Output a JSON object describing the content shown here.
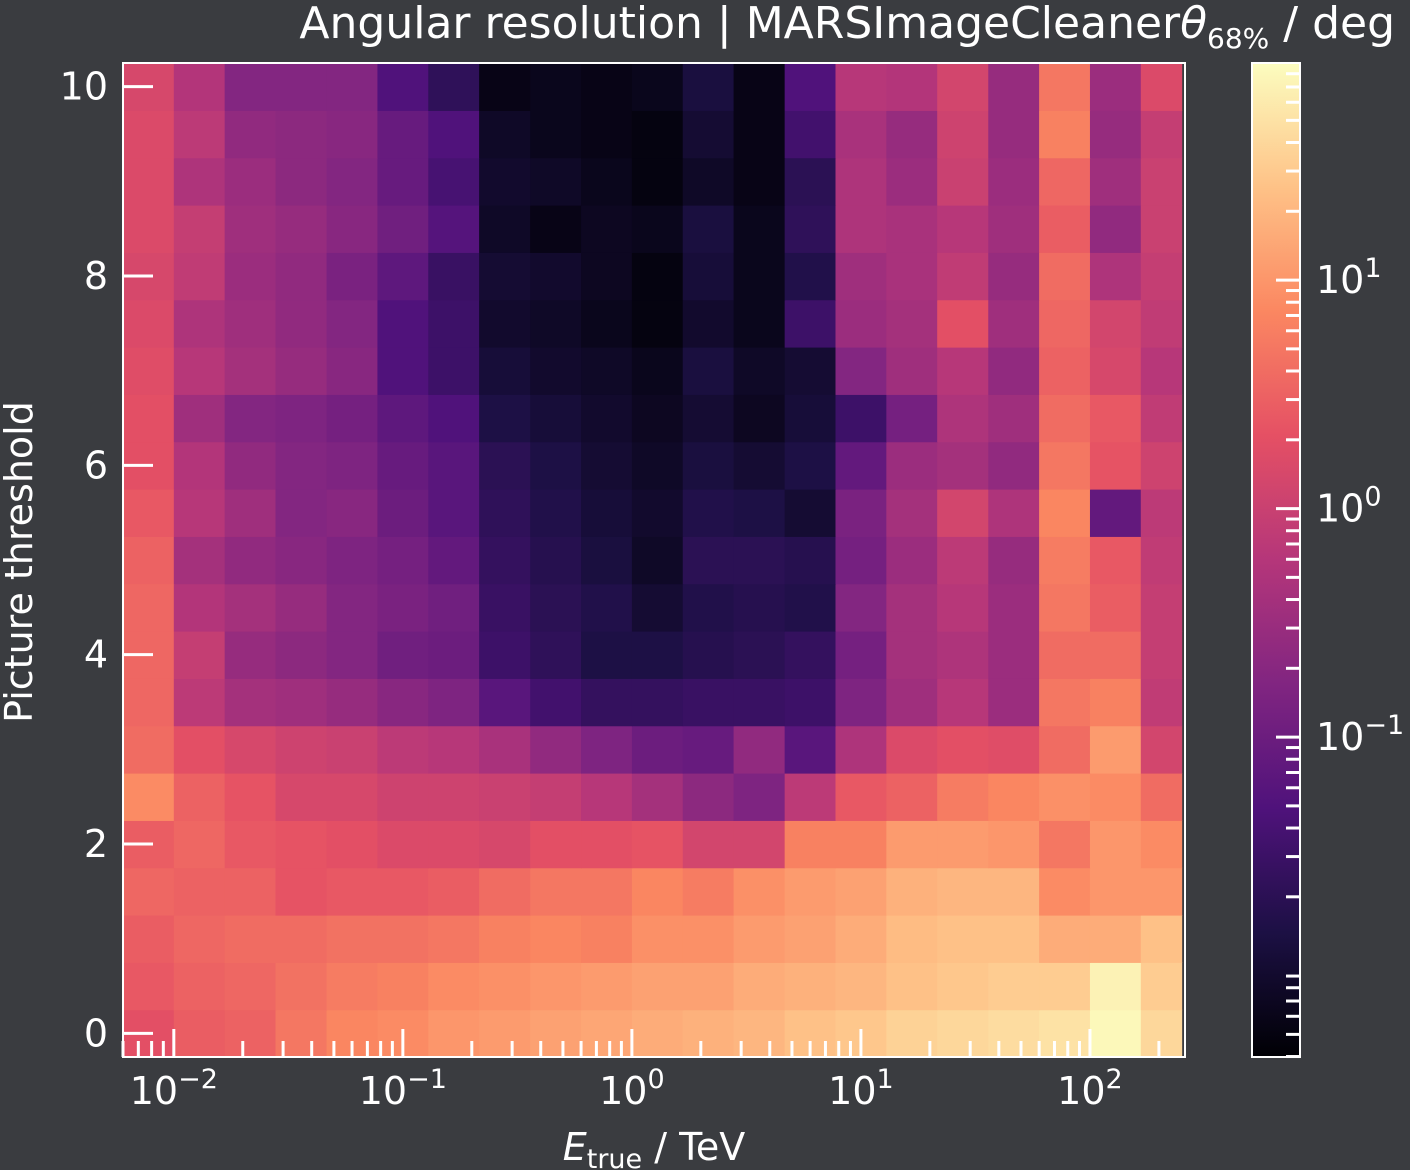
{
  "chart_data": {
    "type": "heatmap",
    "title": {
      "main": "Angular resolution | MARSImageCleaner",
      "symbol": "θ",
      "subscript": "68%",
      "unit": " / deg"
    },
    "xlabel": {
      "symbol": "E",
      "subscript": "true",
      "unit": " / TeV"
    },
    "ylabel": "Picture threshold",
    "x_scale": "log",
    "x_range_tev": [
      0.006,
      260
    ],
    "y_range": [
      -0.25,
      10.25
    ],
    "x_ticks": [
      {
        "value": 0.01,
        "base": "10",
        "exp": "−2"
      },
      {
        "value": 0.1,
        "base": "10",
        "exp": "−1"
      },
      {
        "value": 1,
        "base": "10",
        "exp": "0"
      },
      {
        "value": 10,
        "base": "10",
        "exp": "1"
      },
      {
        "value": 100,
        "base": "10",
        "exp": "2"
      }
    ],
    "y_ticks": [
      {
        "value": 0,
        "label": "0"
      },
      {
        "value": 2,
        "label": "2"
      },
      {
        "value": 4,
        "label": "4"
      },
      {
        "value": 6,
        "label": "6"
      },
      {
        "value": 8,
        "label": "8"
      },
      {
        "value": 10,
        "label": "10"
      }
    ],
    "x_bin_edges_log10_tev": [
      -2.222,
      -2.0,
      -1.778,
      -1.556,
      -1.333,
      -1.111,
      -0.889,
      -0.667,
      -0.444,
      -0.222,
      0.0,
      0.222,
      0.444,
      0.667,
      0.889,
      1.111,
      1.333,
      1.556,
      1.778,
      2.0,
      2.222,
      2.4
    ],
    "y_rows": [
      0.0,
      0.5,
      1.0,
      1.5,
      2.0,
      2.5,
      3.0,
      3.5,
      4.0,
      4.5,
      5.0,
      5.5,
      6.0,
      6.5,
      7.0,
      7.5,
      8.0,
      8.5,
      9.0,
      9.5,
      10.0
    ],
    "color_log10_deg": [
      [
        0.3,
        0.45,
        0.5,
        0.7,
        0.85,
        0.9,
        1.0,
        1.05,
        1.1,
        1.15,
        1.2,
        1.25,
        1.3,
        1.4,
        1.45,
        1.55,
        1.6,
        1.65,
        1.7,
        1.9,
        1.6
      ],
      [
        0.4,
        0.5,
        0.55,
        0.65,
        0.75,
        0.8,
        0.9,
        0.95,
        1.0,
        1.05,
        1.1,
        1.1,
        1.2,
        1.25,
        1.3,
        1.4,
        1.45,
        1.5,
        1.5,
        1.85,
        1.5
      ],
      [
        0.45,
        0.55,
        0.6,
        0.6,
        0.65,
        0.65,
        0.7,
        0.8,
        0.85,
        0.8,
        0.95,
        0.95,
        1.05,
        1.1,
        1.2,
        1.35,
        1.4,
        1.4,
        1.2,
        1.2,
        1.4
      ],
      [
        0.55,
        0.5,
        0.5,
        0.35,
        0.4,
        0.4,
        0.45,
        0.6,
        0.7,
        0.7,
        0.85,
        0.75,
        0.95,
        1.05,
        1.1,
        1.25,
        1.3,
        1.3,
        0.9,
        1.0,
        1.0
      ],
      [
        0.45,
        0.55,
        0.4,
        0.35,
        0.3,
        0.2,
        0.2,
        0.15,
        0.3,
        0.3,
        0.35,
        0.1,
        0.1,
        0.8,
        0.8,
        1.05,
        1.05,
        1.0,
        0.7,
        1.0,
        0.9
      ],
      [
        0.9,
        0.5,
        0.35,
        0.15,
        0.15,
        0.05,
        0.05,
        0.0,
        -0.05,
        -0.2,
        -0.4,
        -0.65,
        -0.8,
        -0.15,
        0.4,
        0.5,
        0.75,
        0.85,
        0.95,
        0.9,
        0.6
      ],
      [
        0.6,
        0.3,
        0.15,
        0.05,
        0.0,
        -0.15,
        -0.2,
        -0.35,
        -0.6,
        -0.8,
        -1.0,
        -1.05,
        -0.6,
        -1.2,
        -0.3,
        0.2,
        0.3,
        0.25,
        0.6,
        1.05,
        0.1
      ],
      [
        0.55,
        -0.15,
        -0.4,
        -0.45,
        -0.55,
        -0.7,
        -0.8,
        -1.2,
        -1.45,
        -1.6,
        -1.6,
        -1.55,
        -1.55,
        -1.5,
        -0.8,
        -0.45,
        -0.2,
        -0.5,
        0.7,
        0.8,
        -0.1
      ],
      [
        0.55,
        -0.05,
        -0.55,
        -0.65,
        -0.75,
        -0.95,
        -1.0,
        -1.5,
        -1.65,
        -1.85,
        -1.85,
        -1.75,
        -1.7,
        -1.6,
        -0.9,
        -0.4,
        -0.3,
        -0.5,
        0.6,
        0.6,
        -0.05
      ],
      [
        0.55,
        -0.25,
        -0.4,
        -0.55,
        -0.75,
        -0.85,
        -0.95,
        -1.55,
        -1.7,
        -1.8,
        -2.0,
        -1.8,
        -1.75,
        -1.8,
        -0.75,
        -0.4,
        -0.2,
        -0.5,
        0.7,
        0.45,
        -0.05
      ],
      [
        0.5,
        -0.4,
        -0.6,
        -0.7,
        -0.8,
        -0.9,
        -1.1,
        -1.6,
        -1.75,
        -1.9,
        -2.1,
        -1.7,
        -1.7,
        -1.75,
        -0.9,
        -0.5,
        -0.15,
        -0.55,
        0.75,
        0.4,
        -0.1
      ],
      [
        0.4,
        -0.2,
        -0.45,
        -0.75,
        -0.7,
        -1.0,
        -1.2,
        -1.65,
        -1.8,
        -1.95,
        -2.05,
        -1.8,
        -1.85,
        -2.0,
        -0.85,
        -0.4,
        0.1,
        -0.3,
        0.85,
        -1.1,
        -0.15
      ],
      [
        0.3,
        -0.25,
        -0.6,
        -0.75,
        -0.8,
        -1.05,
        -1.2,
        -1.7,
        -1.85,
        -2.0,
        -2.1,
        -1.9,
        -2.0,
        -1.85,
        -1.1,
        -0.5,
        -0.4,
        -0.6,
        0.7,
        0.35,
        0.05
      ],
      [
        0.3,
        -0.45,
        -0.75,
        -0.8,
        -0.9,
        -1.15,
        -1.3,
        -1.85,
        -1.95,
        -2.05,
        -2.15,
        -2.0,
        -2.15,
        -1.95,
        -1.5,
        -0.9,
        -0.3,
        -0.45,
        0.6,
        0.4,
        -0.1
      ],
      [
        0.25,
        -0.2,
        -0.4,
        -0.55,
        -0.7,
        -1.3,
        -1.5,
        -1.95,
        -2.05,
        -2.1,
        -2.2,
        -1.9,
        -2.1,
        -2.0,
        -0.75,
        -0.45,
        -0.2,
        -0.6,
        0.5,
        0.15,
        -0.2
      ],
      [
        0.2,
        -0.3,
        -0.45,
        -0.6,
        -0.75,
        -1.3,
        -1.5,
        -2.05,
        -2.1,
        -2.2,
        -2.3,
        -2.05,
        -2.2,
        -1.5,
        -0.5,
        -0.4,
        0.3,
        -0.45,
        0.55,
        0.1,
        -0.1
      ],
      [
        0.15,
        -0.1,
        -0.5,
        -0.6,
        -0.85,
        -1.15,
        -1.55,
        -2.0,
        -2.05,
        -2.15,
        -2.3,
        -1.95,
        -2.2,
        -1.8,
        -0.45,
        -0.35,
        -0.1,
        -0.55,
        0.6,
        -0.3,
        -0.05
      ],
      [
        0.2,
        -0.05,
        -0.45,
        -0.55,
        -0.7,
        -0.95,
        -1.25,
        -2.1,
        -2.25,
        -2.15,
        -2.2,
        -1.9,
        -2.2,
        -1.65,
        -0.3,
        -0.35,
        -0.2,
        -0.45,
        0.45,
        -0.6,
        0.0
      ],
      [
        0.2,
        -0.3,
        -0.5,
        -0.65,
        -0.75,
        -1.05,
        -1.4,
        -2.05,
        -2.1,
        -2.2,
        -2.3,
        -2.1,
        -2.25,
        -1.7,
        -0.3,
        -0.5,
        0.0,
        -0.5,
        0.55,
        -0.45,
        0.0
      ],
      [
        0.2,
        -0.15,
        -0.6,
        -0.65,
        -0.7,
        -1.05,
        -1.3,
        -2.1,
        -2.2,
        -2.25,
        -2.3,
        -2.0,
        -2.25,
        -1.45,
        -0.35,
        -0.55,
        0.05,
        -0.55,
        0.8,
        -0.55,
        -0.05
      ],
      [
        0.15,
        -0.25,
        -0.75,
        -0.75,
        -0.75,
        -1.3,
        -1.65,
        -2.25,
        -2.2,
        -2.25,
        -2.2,
        -1.9,
        -2.25,
        -1.3,
        -0.2,
        -0.25,
        0.1,
        -0.55,
        0.7,
        -0.5,
        0.2
      ]
    ],
    "colorbar": {
      "scale": "log",
      "range_log10": [
        -2.4,
        1.95
      ],
      "colormap": "magma",
      "ticks": [
        {
          "log10": 1,
          "base": "10",
          "exp": "1"
        },
        {
          "log10": 0,
          "base": "10",
          "exp": "0"
        },
        {
          "log10": -1,
          "base": "10",
          "exp": "−1"
        }
      ]
    },
    "grid": false,
    "colors": {
      "background": "#3a3c40",
      "foreground": "#ffffff"
    }
  }
}
